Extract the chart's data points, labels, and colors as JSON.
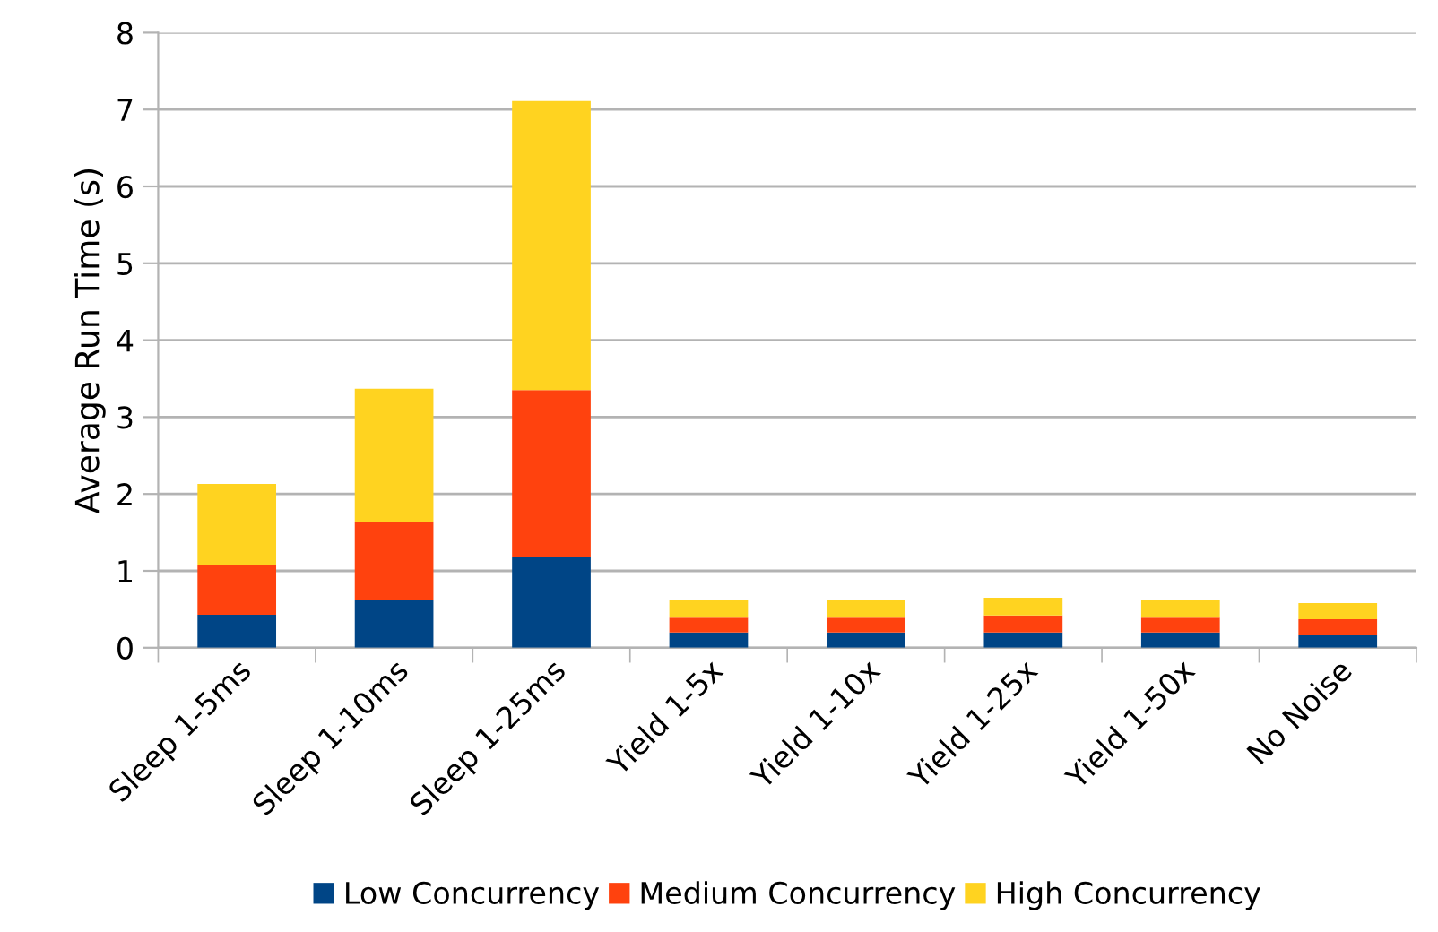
{
  "chart_data": {
    "type": "bar",
    "stacked": true,
    "ylabel": "Average Run Time (s)",
    "categories": [
      "Sleep 1-5ms",
      "Sleep 1-10ms",
      "Sleep 1-25ms",
      "Yield 1-5x",
      "Yield 1-10x",
      "Yield 1-25x",
      "Yield 1-50x",
      "No Noise"
    ],
    "series": [
      {
        "name": "Low Concurrency",
        "color": "#004586",
        "values": [
          0.43,
          0.62,
          1.18,
          0.2,
          0.2,
          0.2,
          0.2,
          0.16
        ]
      },
      {
        "name": "Medium Concurrency",
        "color": "#ff420e",
        "values": [
          0.65,
          1.02,
          2.17,
          0.19,
          0.19,
          0.22,
          0.19,
          0.21
        ]
      },
      {
        "name": "High Concurrency",
        "color": "#ffd320",
        "values": [
          1.05,
          1.73,
          3.76,
          0.23,
          0.23,
          0.23,
          0.23,
          0.21
        ]
      }
    ],
    "ylim": [
      0,
      8
    ],
    "yticks": [
      0,
      1,
      2,
      3,
      4,
      5,
      6,
      7,
      8
    ],
    "grid": "y",
    "legend": "bottom"
  }
}
